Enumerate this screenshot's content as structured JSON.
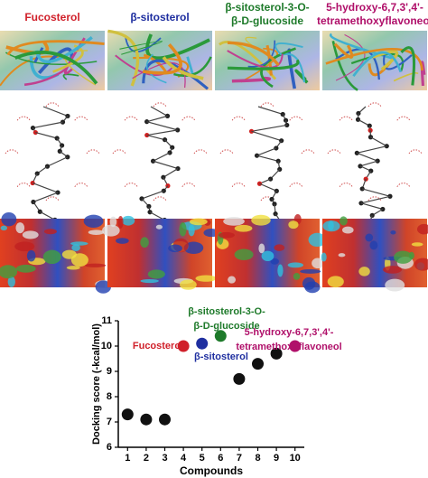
{
  "panels": {
    "titles": [
      {
        "lines": [
          "Fucosterol"
        ],
        "color": "#d0202a"
      },
      {
        "lines": [
          "β-sitosterol"
        ],
        "color": "#1f2fa0"
      },
      {
        "lines": [
          "β-sitosterol-3-O-",
          "β-D-glucoside"
        ],
        "color": "#1e7a2a"
      },
      {
        "lines": [
          "5-hydroxy-6,7,3',4'-",
          "tetramethoxyflavoneol"
        ],
        "color": "#b0106a"
      }
    ]
  },
  "chart_data": {
    "type": "scatter",
    "x": [
      1,
      2,
      3,
      4,
      5,
      6,
      7,
      8,
      9,
      10
    ],
    "values": [
      7.3,
      7.1,
      7.1,
      10.0,
      10.1,
      10.4,
      8.7,
      9.3,
      9.7,
      10.0
    ],
    "colors": [
      "#111111",
      "#111111",
      "#111111",
      "#d0202a",
      "#1f2fa0",
      "#1e7a2a",
      "#111111",
      "#111111",
      "#111111",
      "#b0106a"
    ],
    "xlim": [
      0.5,
      10.5
    ],
    "xticks": [
      1,
      2,
      3,
      4,
      5,
      6,
      7,
      8,
      9,
      10
    ],
    "ylim": [
      6,
      11
    ],
    "yticks": [
      6,
      7,
      8,
      9,
      10,
      11
    ],
    "xlabel": "Compounds",
    "ylabel": "Docking score (-kcal/mol)",
    "annotations": [
      {
        "lines": [
          "Fucosterol"
        ],
        "color": "#d0202a"
      },
      {
        "lines": [
          "β-sitosterol"
        ],
        "color": "#1f2fa0"
      },
      {
        "lines": [
          "β-sitosterol-3-O-",
          "β-D-glucoside"
        ],
        "color": "#1e7a2a"
      },
      {
        "lines": [
          "5-hydroxy-6,7,3',4'-",
          "tetramethoxyflavoneol"
        ],
        "color": "#b0106a"
      }
    ]
  }
}
